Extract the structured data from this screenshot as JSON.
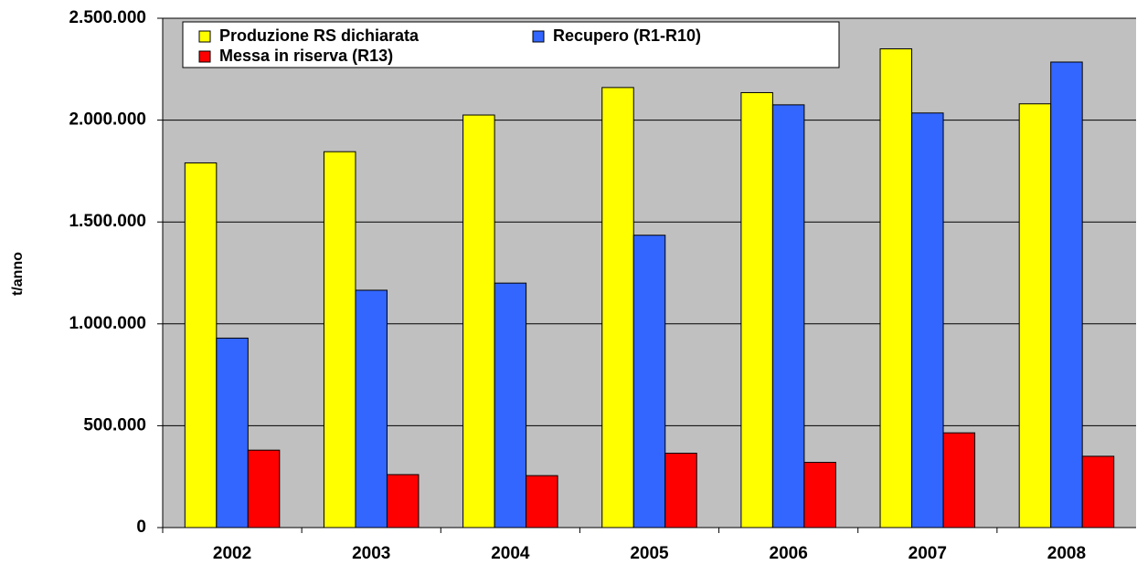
{
  "chart_data": {
    "type": "bar",
    "y_label": "t/anno",
    "categories": [
      "2002",
      "2003",
      "2004",
      "2005",
      "2006",
      "2007",
      "2008"
    ],
    "series": [
      {
        "name": "Produzione RS dichiarata",
        "color": "#ffff00",
        "values": [
          1790000,
          1845000,
          2025000,
          2160000,
          2135000,
          2350000,
          2080000
        ]
      },
      {
        "name": "Recupero (R1-R10)",
        "color": "#3366ff",
        "values": [
          930000,
          1165000,
          1200000,
          1435000,
          2075000,
          2035000,
          2285000
        ]
      },
      {
        "name": "Messa in riserva (R13)",
        "color": "#ff0000",
        "values": [
          380000,
          260000,
          255000,
          365000,
          320000,
          465000,
          350000
        ]
      }
    ],
    "ylim": [
      0,
      2500000
    ],
    "yticks": [
      0,
      {
        "value": 500000,
        "label": "500.000"
      },
      {
        "value": 1000000,
        "label": "1.000.000"
      },
      {
        "value": 1500000,
        "label": "1.500.000"
      },
      {
        "value": 2000000,
        "label": "2.000.000"
      },
      {
        "value": 2500000,
        "label": "2.500.000"
      }
    ],
    "grid": true,
    "legend": "upper left"
  }
}
